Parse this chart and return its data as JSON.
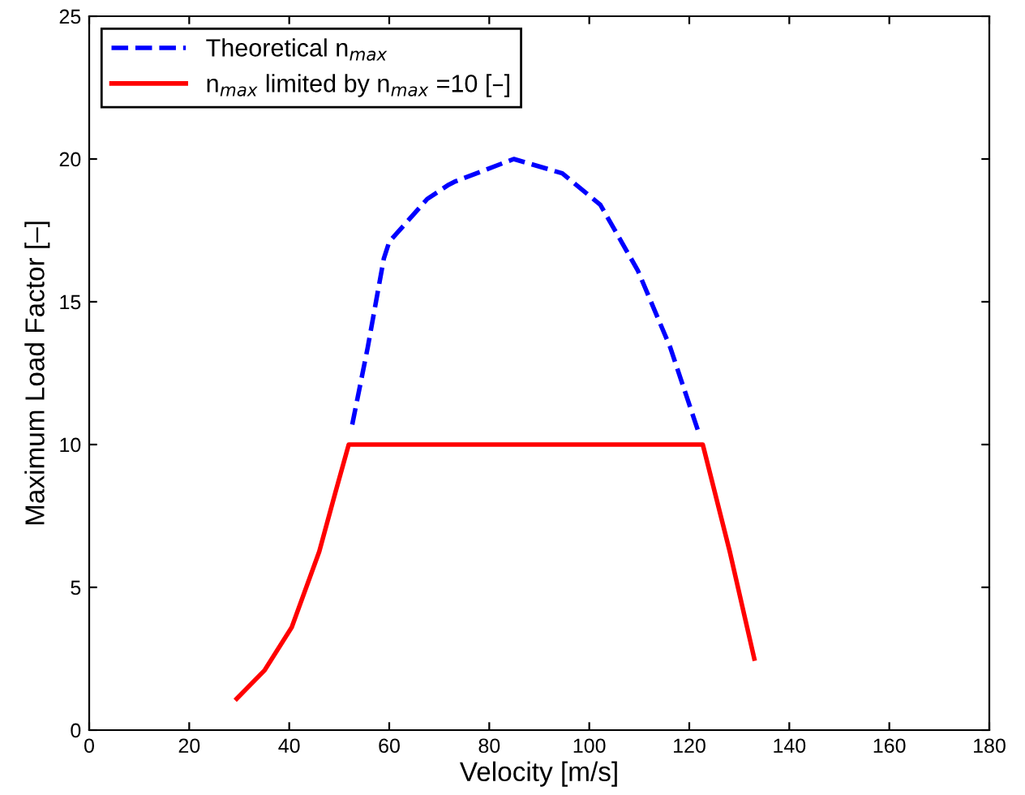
{
  "chart_data": {
    "type": "line",
    "xlabel": "Velocity [m/s]",
    "ylabel": "Maximum Load Factor [–]",
    "xlim": [
      0,
      180
    ],
    "ylim": [
      0,
      25
    ],
    "xticks": [
      0,
      20,
      40,
      60,
      80,
      100,
      120,
      140,
      160,
      180
    ],
    "yticks": [
      0,
      5,
      10,
      15,
      20,
      25
    ],
    "grid": false,
    "legend": "top left",
    "series": [
      {
        "name": "Theoretical n$_{max}$",
        "color": "#0000ff",
        "line_style": "dashed",
        "x": [
          52.6,
          55.7,
          58.9,
          60,
          67.6,
          71.9,
          73,
          84.9,
          94.6,
          102.2,
          109.7,
          116.2,
          122.1
        ],
        "values": [
          10.7,
          13.4,
          16.5,
          17.1,
          18.6,
          19.1,
          19.2,
          20.0,
          19.5,
          18.4,
          16.1,
          13.4,
          10.3
        ]
      },
      {
        "name": "n$_{max}$ limited by n$_{max}$ =10 [–]",
        "color": "#ff0000",
        "line_style": "solid",
        "x": [
          29.5,
          35.1,
          40.5,
          46.0,
          49.2,
          51.9,
          122.7,
          128.1,
          133.0
        ],
        "values": [
          1.1,
          2.1,
          3.6,
          6.25,
          8.3,
          10,
          10,
          6.25,
          2.5
        ]
      }
    ]
  }
}
